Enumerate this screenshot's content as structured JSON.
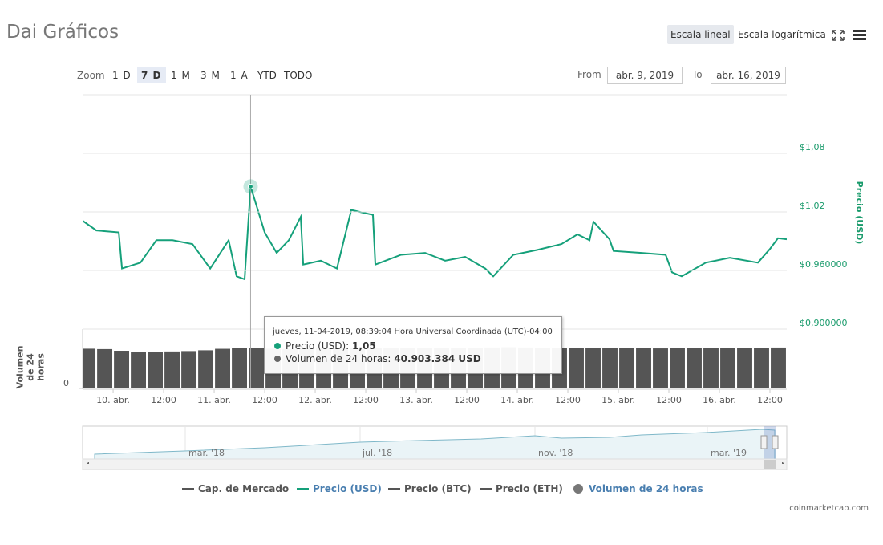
{
  "title": "Dai Gráficos",
  "scale_buttons": [
    "Escala lineal",
    "Escala logarítmica"
  ],
  "zoom": {
    "label": "Zoom",
    "buttons": [
      "1 D",
      "7 D",
      "1 M",
      "3 M",
      "1 A",
      "YTD",
      "TODO"
    ]
  },
  "range": {
    "from_label": "From",
    "from": "abr. 9, 2019",
    "to_label": "To",
    "to": "abr. 16, 2019"
  },
  "chart_data": [
    {
      "type": "line",
      "y_label": "Precio (USD)",
      "x": [
        "2019-04-09T16:45",
        "2019-04-09T20:00",
        "2019-04-10T01:20",
        "2019-04-10T02:06",
        "2019-04-10T06:29",
        "2019-04-10T10:17",
        "2019-04-10T14:06",
        "2019-04-10T18:51",
        "2019-04-10T23:03",
        "2019-04-11T03:26",
        "2019-04-11T05:20",
        "2019-04-11T07:14",
        "2019-04-11T08:39",
        "2019-04-11T12:00",
        "2019-04-11T14:51",
        "2019-04-11T17:43",
        "2019-04-11T20:34",
        "2019-04-11T21:09",
        "2019-04-12T01:20",
        "2019-04-12T05:09",
        "2019-04-12T08:34",
        "2019-04-12T13:43",
        "2019-04-12T14:17",
        "2019-04-12T20:23",
        "2019-04-13T02:06",
        "2019-04-13T06:51",
        "2019-04-13T11:37",
        "2019-04-13T16:23",
        "2019-04-13T18:17",
        "2019-04-13T23:03",
        "2019-04-14T04:46",
        "2019-04-14T10:29",
        "2019-04-14T14:17",
        "2019-04-14T17:09",
        "2019-04-14T18:06",
        "2019-04-14T21:54",
        "2019-04-14T22:51",
        "2019-04-15T05:31",
        "2019-04-15T11:14",
        "2019-04-15T12:46",
        "2019-04-15T15:03",
        "2019-04-15T20:46",
        "2019-04-16T02:29",
        "2019-04-16T09:09",
        "2019-04-16T12:00",
        "2019-04-16T13:54",
        "2019-04-16T16:00"
      ],
      "series": [
        {
          "name": "Precio (USD)",
          "color": "#15a07a",
          "values": [
            1.011,
            1.001,
            0.999,
            0.962,
            0.968,
            0.991,
            0.991,
            0.987,
            0.962,
            0.991,
            0.954,
            0.951,
            1.046,
            0.999,
            0.978,
            0.991,
            1.015,
            0.966,
            0.97,
            0.962,
            1.022,
            1.017,
            0.966,
            0.976,
            0.978,
            0.97,
            0.974,
            0.962,
            0.954,
            0.976,
            0.981,
            0.987,
            0.997,
            0.991,
            1.01,
            0.992,
            0.98,
            0.978,
            0.976,
            0.958,
            0.954,
            0.968,
            0.973,
            0.968,
            0.982,
            0.993,
            0.992
          ]
        }
      ],
      "xlim": [
        "2019-04-09T16:45",
        "2019-04-16T16:00"
      ],
      "xticks": [
        {
          "value": "2019-04-10T00:00",
          "label": "10. abr."
        },
        {
          "value": "2019-04-10T12:00",
          "label": "12:00"
        },
        {
          "value": "2019-04-11T00:00",
          "label": "11. abr."
        },
        {
          "value": "2019-04-11T12:00",
          "label": "12:00"
        },
        {
          "value": "2019-04-12T00:00",
          "label": "12. abr."
        },
        {
          "value": "2019-04-12T12:00",
          "label": "12:00"
        },
        {
          "value": "2019-04-13T00:00",
          "label": "13. abr."
        },
        {
          "value": "2019-04-13T12:00",
          "label": "12:00"
        },
        {
          "value": "2019-04-14T00:00",
          "label": "14. abr."
        },
        {
          "value": "2019-04-14T12:00",
          "label": "12:00"
        },
        {
          "value": "2019-04-15T00:00",
          "label": "15. abr."
        },
        {
          "value": "2019-04-15T12:00",
          "label": "12:00"
        },
        {
          "value": "2019-04-16T00:00",
          "label": "16. abr."
        },
        {
          "value": "2019-04-16T12:00",
          "label": "12:00"
        }
      ],
      "ylim": [
        0.9,
        1.14
      ],
      "yticks": [
        {
          "value": 0.9,
          "label": "$0,900000"
        },
        {
          "value": 0.96,
          "label": "$0,960000"
        },
        {
          "value": 1.02,
          "label": "$1,02"
        },
        {
          "value": 1.08,
          "label": "$1,08"
        }
      ],
      "grid": true
    },
    {
      "type": "bar",
      "y_label": "Volumen de 24 horas",
      "color": "#555555",
      "x": [
        "2019-04-09T18:00",
        "2019-04-09T22:00",
        "2019-04-10T02:00",
        "2019-04-10T06:00",
        "2019-04-10T10:00",
        "2019-04-10T14:00",
        "2019-04-10T18:00",
        "2019-04-10T22:00",
        "2019-04-11T02:00",
        "2019-04-11T06:00",
        "2019-04-11T10:00",
        "2019-04-11T14:00",
        "2019-04-11T18:00",
        "2019-04-11T22:00",
        "2019-04-12T02:00",
        "2019-04-12T06:00",
        "2019-04-12T10:00",
        "2019-04-12T14:00",
        "2019-04-12T18:00",
        "2019-04-12T22:00",
        "2019-04-13T02:00",
        "2019-04-13T06:00",
        "2019-04-13T10:00",
        "2019-04-13T14:00",
        "2019-04-13T18:00",
        "2019-04-13T22:00",
        "2019-04-14T02:00",
        "2019-04-14T06:00",
        "2019-04-14T10:00",
        "2019-04-14T14:00",
        "2019-04-14T18:00",
        "2019-04-14T22:00",
        "2019-04-15T02:00",
        "2019-04-15T06:00",
        "2019-04-15T10:00",
        "2019-04-15T14:00",
        "2019-04-15T18:00",
        "2019-04-15T22:00",
        "2019-04-16T02:00",
        "2019-04-16T06:00",
        "2019-04-16T10:00",
        "2019-04-16T14:00"
      ],
      "values": [
        40200000,
        39800000,
        38100000,
        37200000,
        36900000,
        37400000,
        37800000,
        38600000,
        40100000,
        40900000,
        40600000,
        40300000,
        39900000,
        40500000,
        41200000,
        40800000,
        40600000,
        41000000,
        40700000,
        40900000,
        41300000,
        41100000,
        40800000,
        41000000,
        41500000,
        41700000,
        41400000,
        41200000,
        40900000,
        40600000,
        40800000,
        40900000,
        41100000,
        40700000,
        40500000,
        40800000,
        41000000,
        40600000,
        40900000,
        41200000,
        41300000,
        41400000
      ],
      "ylim": [
        0,
        60000000
      ],
      "yticks": [
        0
      ]
    }
  ],
  "tooltip": {
    "date": "jueves, 11-04-2019, 08:39:04 Hora Universal Coordinada (UTC)-04:00",
    "rows": [
      {
        "label": "Precio (USD):",
        "value": "1,05",
        "color": "#15a07a"
      },
      {
        "label": "Volumen de 24 horas:",
        "value": "40.903.384 USD",
        "color": "#666666"
      }
    ]
  },
  "navigator": {
    "labels": [
      "mar. '18",
      "jul. '18",
      "nov. '18",
      "mar. '19"
    ]
  },
  "legend": [
    {
      "name": "Cap. de Mercado",
      "color": "#555555",
      "marker": "line",
      "text_color": "#555555"
    },
    {
      "name": "Precio (USD)",
      "color": "#15a07a",
      "marker": "line",
      "text_color": "#4a7fb0"
    },
    {
      "name": "Precio (BTC)",
      "color": "#555555",
      "marker": "line",
      "text_color": "#555555"
    },
    {
      "name": "Precio (ETH)",
      "color": "#555555",
      "marker": "line",
      "text_color": "#555555"
    },
    {
      "name": "Volumen de 24 horas",
      "color": "#777777",
      "marker": "dot",
      "text_color": "#4a7fb0"
    }
  ],
  "credit": "coinmarketcap.com"
}
